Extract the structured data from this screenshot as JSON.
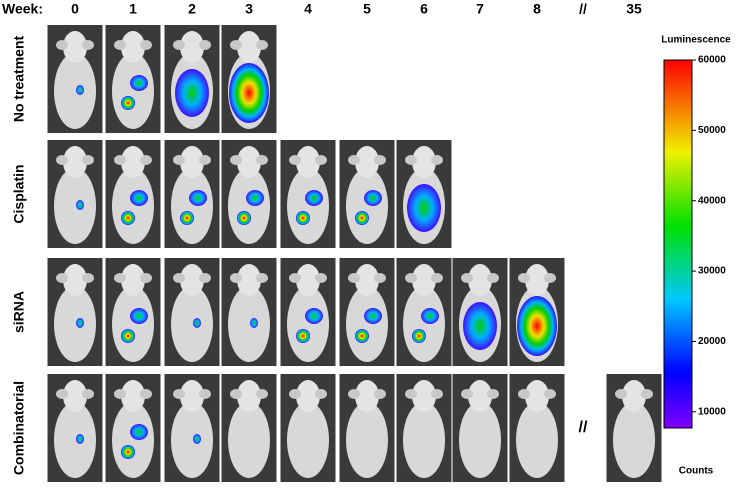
{
  "header": {
    "week_label": "Week:",
    "weeks": [
      "0",
      "1",
      "2",
      "3",
      "4",
      "5",
      "6",
      "7",
      "8",
      "//",
      "35"
    ]
  },
  "rows": [
    {
      "label": "No treatment"
    },
    {
      "label": "Cisplatin"
    },
    {
      "label": "siRNA"
    },
    {
      "label": "Combinatorial"
    }
  ],
  "colorbar": {
    "title": "Luminescence",
    "unit_label": "Counts",
    "lim": [
      7700,
      60000
    ],
    "ticks": [
      10000,
      20000,
      30000,
      40000,
      50000,
      60000
    ]
  }
}
